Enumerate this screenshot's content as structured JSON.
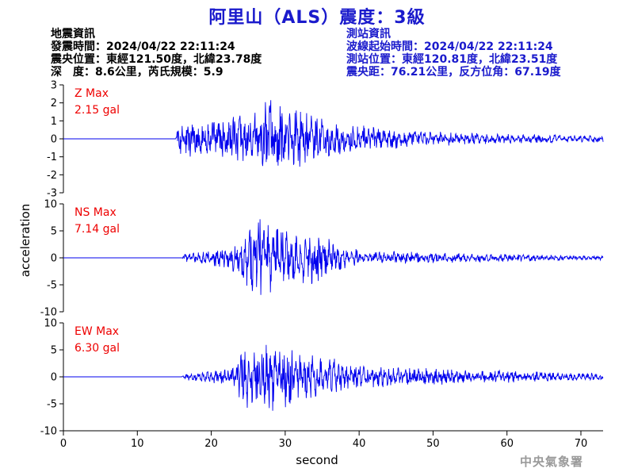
{
  "title": "阿里山（ALS）震度：3級",
  "quake_info": {
    "heading": "地震資訊",
    "time": "發震時間：2024/04/22 22:11:24",
    "location": "震央位置：東經121.50度，北緯23.78度",
    "depth_magnitude": "深　度：8.6公里，芮氏規模：5.9"
  },
  "station_info": {
    "heading": "測站資訊",
    "start_time": "波線起始時間：2024/04/22 22:11:24",
    "location": "測站位置：東經120.81度，北緯23.51度",
    "distance_azimuth": "震央距：76.21公里，反方位角：67.19度"
  },
  "watermark": "中央氣象署",
  "colors": {
    "trace": "#0000ee",
    "peak_label": "#ee0000",
    "title": "#1a1acc"
  },
  "chart_data": {
    "type": "line",
    "xlabel": "second",
    "ylabel": "acceleration",
    "xlim": [
      0,
      73
    ],
    "x_ticks": [
      0,
      10,
      20,
      30,
      40,
      50,
      60,
      70
    ],
    "x_tick_labels": [
      "0",
      "10",
      "20",
      "30",
      "40",
      "50",
      "60",
      "70"
    ],
    "panels": [
      {
        "name": "Z Max",
        "peak_label": "2.15 gal",
        "peak": 2.15,
        "ylim": [
          -3,
          3
        ],
        "y_ticks": [
          -3,
          -2,
          -1,
          0,
          1,
          2,
          3
        ],
        "y_tick_labels": [
          "-3",
          "-2",
          "-1",
          "0",
          "1",
          "2",
          "3"
        ],
        "onset_s": 15.2,
        "envelope": [
          [
            0,
            0
          ],
          [
            15.2,
            0
          ],
          [
            15.5,
            0.8
          ],
          [
            20,
            0.85
          ],
          [
            25,
            1.15
          ],
          [
            28,
            1.9
          ],
          [
            32,
            1.3
          ],
          [
            36,
            0.85
          ],
          [
            42,
            0.55
          ],
          [
            50,
            0.35
          ],
          [
            60,
            0.22
          ],
          [
            73,
            0.15
          ]
        ]
      },
      {
        "name": "NS Max",
        "peak_label": "7.14 gal",
        "peak": 7.14,
        "ylim": [
          -10,
          10
        ],
        "y_ticks": [
          -10,
          -5,
          0,
          5,
          10
        ],
        "y_tick_labels": [
          "-10",
          "-5",
          "0",
          "5",
          "10"
        ],
        "onset_s": 16.0,
        "envelope": [
          [
            0,
            0
          ],
          [
            16,
            0
          ],
          [
            16.5,
            0.7
          ],
          [
            20,
            1.0
          ],
          [
            23,
            2.0
          ],
          [
            25,
            4.5
          ],
          [
            26.5,
            6.5
          ],
          [
            28,
            5.0
          ],
          [
            30,
            3.8
          ],
          [
            35,
            3.6
          ],
          [
            37,
            2.0
          ],
          [
            40,
            1.1
          ],
          [
            48,
            0.8
          ],
          [
            60,
            0.5
          ],
          [
            73,
            0.3
          ]
        ]
      },
      {
        "name": "EW Max",
        "peak_label": "6.30 gal",
        "peak": 6.3,
        "ylim": [
          -10,
          10
        ],
        "y_ticks": [
          -10,
          -5,
          0,
          5,
          10
        ],
        "y_tick_labels": [
          "-10",
          "-5",
          "0",
          "5",
          "10"
        ],
        "onset_s": 16.0,
        "envelope": [
          [
            0,
            0
          ],
          [
            16,
            0
          ],
          [
            16.5,
            0.5
          ],
          [
            20,
            0.8
          ],
          [
            23,
            1.5
          ],
          [
            25,
            4.5
          ],
          [
            27,
            4.0
          ],
          [
            29,
            5.5
          ],
          [
            32,
            3.0
          ],
          [
            36,
            2.6
          ],
          [
            40,
            1.5
          ],
          [
            50,
            1.1
          ],
          [
            60,
            0.8
          ],
          [
            73,
            0.5
          ]
        ]
      }
    ]
  }
}
